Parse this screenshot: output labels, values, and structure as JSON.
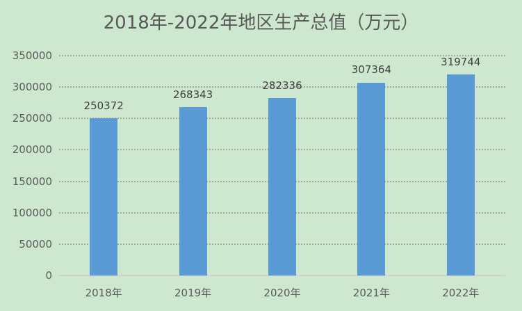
{
  "chart_data": {
    "type": "bar",
    "title": "2018年-2022年地区生产总值（万元）",
    "categories": [
      "2018年",
      "2019年",
      "2020年",
      "2021年",
      "2022年"
    ],
    "values": [
      250372,
      268343,
      282336,
      307364,
      319744
    ],
    "data_labels": [
      "250372",
      "268343",
      "282336",
      "307364",
      "319744"
    ],
    "xlabel": "",
    "ylabel": "",
    "ylim": [
      0,
      350000
    ],
    "yticks": [
      "0",
      "50000",
      "100000",
      "150000",
      "200000",
      "250000",
      "300000",
      "350000"
    ],
    "grid": true,
    "legend": "none",
    "bar_color": "#5b9bd5",
    "background": "#cde8cf"
  }
}
